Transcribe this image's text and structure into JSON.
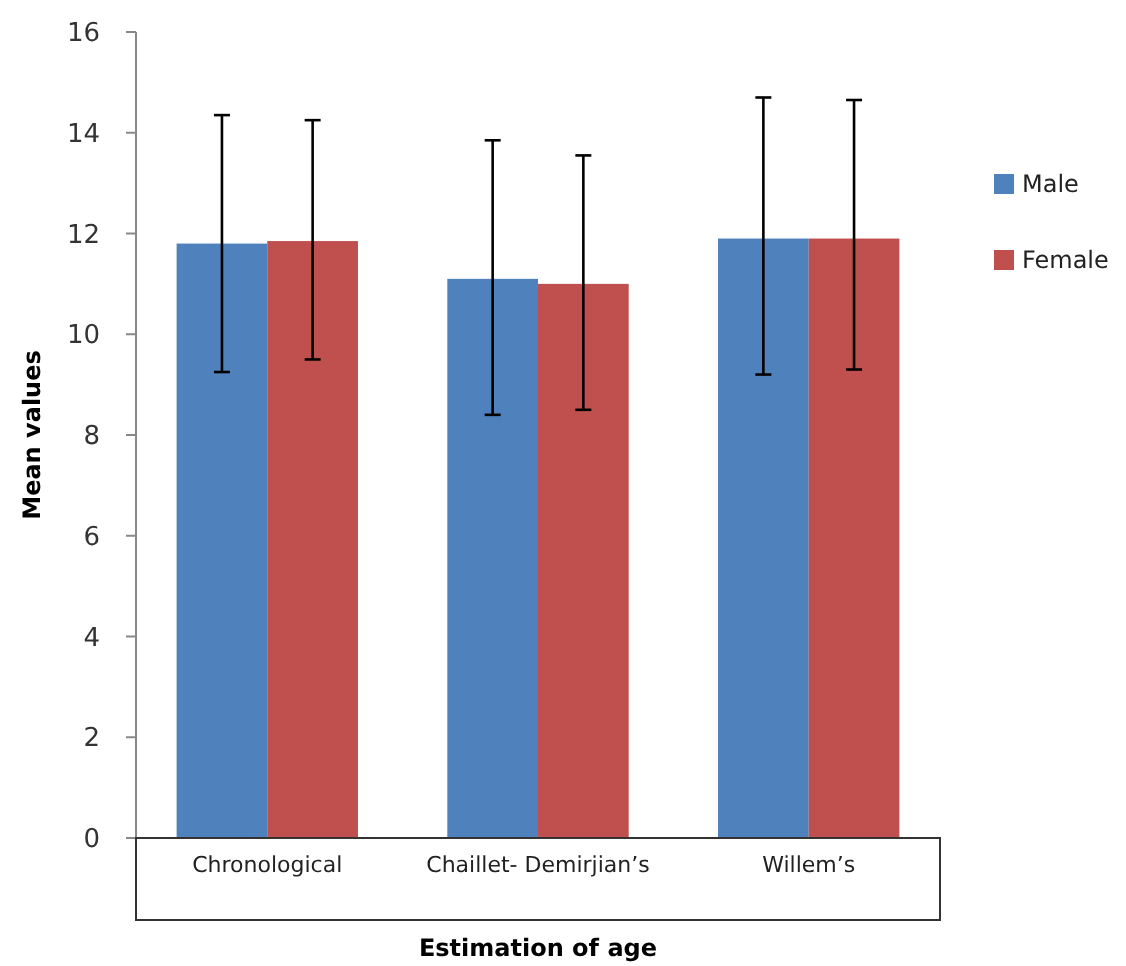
{
  "chart_data": {
    "type": "bar",
    "xlabel": "Estimation of age",
    "ylabel": "Mean values",
    "categories": [
      "Chronological",
      "Chaillet- Demirjian’s",
      "Willem’s"
    ],
    "series": [
      {
        "name": "Male",
        "color": "#4f81bd",
        "values": [
          11.8,
          11.1,
          11.9
        ],
        "errors": [
          [
            9.25,
            14.35
          ],
          [
            8.4,
            13.85
          ],
          [
            9.2,
            14.7
          ]
        ]
      },
      {
        "name": "Female",
        "color": "#c0504d",
        "values": [
          11.85,
          11.0,
          11.9
        ],
        "errors": [
          [
            9.5,
            14.25
          ],
          [
            8.5,
            13.55
          ],
          [
            9.3,
            14.65
          ]
        ]
      }
    ],
    "ylim": [
      0,
      16
    ],
    "yticks": [
      0,
      2,
      4,
      6,
      8,
      10,
      12,
      14,
      16
    ],
    "grid": false,
    "legend": "right"
  }
}
